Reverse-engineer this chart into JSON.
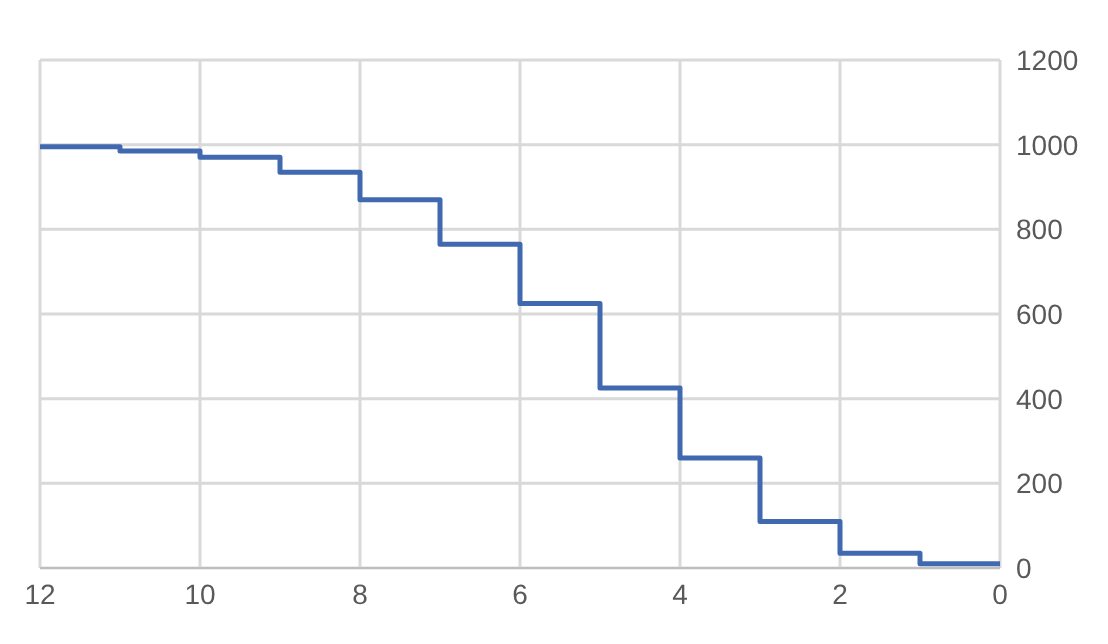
{
  "chart_data": {
    "type": "step",
    "x": [
      12,
      11,
      10,
      9,
      8,
      7,
      6,
      5,
      4,
      3,
      2,
      1,
      0
    ],
    "series": [
      {
        "color": "#4169b0",
        "values": [
          995,
          985,
          970,
          935,
          870,
          765,
          625,
          425,
          260,
          110,
          35,
          10,
          10
        ]
      }
    ],
    "xlim": [
      12,
      0
    ],
    "xticks": [
      12,
      10,
      8,
      6,
      4,
      2,
      0
    ],
    "ylim": [
      0,
      1200
    ],
    "yticks": [
      0,
      200,
      400,
      600,
      800,
      1000,
      1200
    ],
    "grid": true,
    "legend": false
  }
}
